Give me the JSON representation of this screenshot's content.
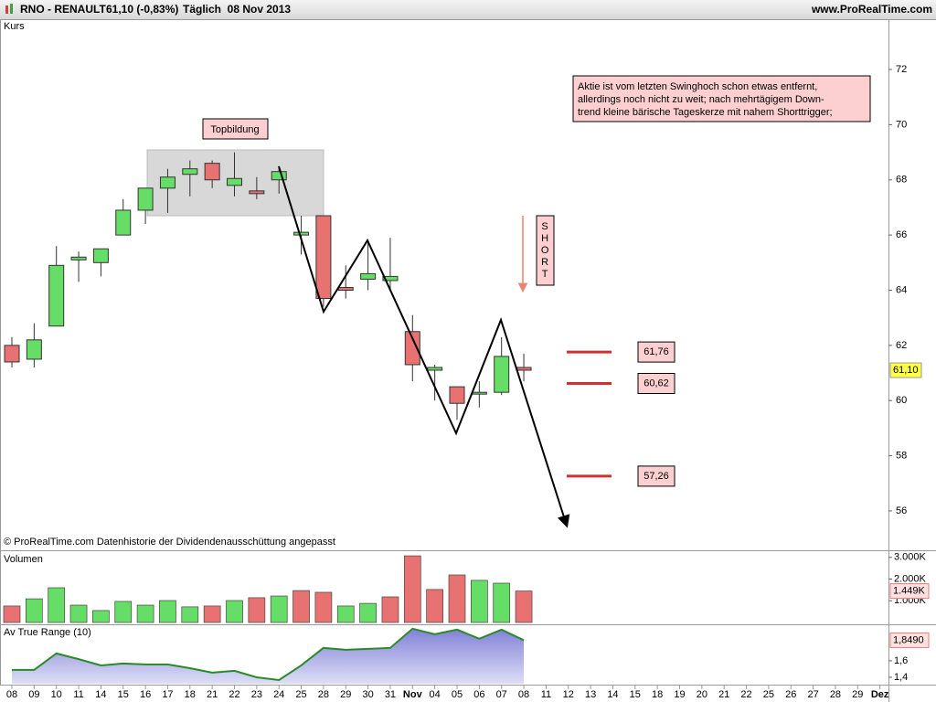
{
  "header": {
    "symbol": "RNO - RENAULT",
    "quote": "61,10 (-0,83%)",
    "period": "Täglich  08 Nov 2013",
    "site": "www.ProRealTime.com"
  },
  "x_axis": {
    "labels": [
      "08",
      "09",
      "10",
      "11",
      "14",
      "15",
      "16",
      "17",
      "18",
      "21",
      "22",
      "23",
      "24",
      "25",
      "28",
      "29",
      "30",
      "31",
      "Nov",
      "04",
      "05",
      "06",
      "07",
      "08",
      "11",
      "12",
      "13",
      "14",
      "15",
      "18",
      "19",
      "20",
      "21",
      "22",
      "25",
      "26",
      "27",
      "28",
      "29",
      "Dez"
    ]
  },
  "chart_data": [
    {
      "type": "candlestick",
      "title": "Kurs",
      "open": [
        62.0,
        61.5,
        62.7,
        65.1,
        65.0,
        66.0,
        66.9,
        67.7,
        68.2,
        68.6,
        67.8,
        67.6,
        68.0,
        66.0,
        66.7,
        64.1,
        64.4,
        64.35,
        62.5,
        61.1,
        60.5,
        60.25,
        60.3,
        61.2
      ],
      "high": [
        62.3,
        62.8,
        65.6,
        65.4,
        65.5,
        67.3,
        67.7,
        68.4,
        68.7,
        68.7,
        69.0,
        68.1,
        68.5,
        66.7,
        66.7,
        64.9,
        65.8,
        65.9,
        63.1,
        61.3,
        60.5,
        60.7,
        62.3,
        61.7
      ],
      "low": [
        61.2,
        61.2,
        62.7,
        64.3,
        64.5,
        66.0,
        66.4,
        66.8,
        67.4,
        67.7,
        67.4,
        67.3,
        67.5,
        65.3,
        63.4,
        63.7,
        64.0,
        64.0,
        60.7,
        60.0,
        59.3,
        59.75,
        60.2,
        60.7
      ],
      "close": [
        61.4,
        62.2,
        64.9,
        65.2,
        65.5,
        66.9,
        67.7,
        68.1,
        68.4,
        68.0,
        68.05,
        67.5,
        68.3,
        66.1,
        63.7,
        64.0,
        64.6,
        64.5,
        61.3,
        61.2,
        59.9,
        60.3,
        61.6,
        61.1
      ],
      "up_color": "#66dd66",
      "down_color": "#e87272",
      "ylim": [
        54.64,
        73.79
      ],
      "yticks": [
        56,
        58,
        60,
        62,
        64,
        66,
        68,
        70,
        72
      ],
      "last_value": {
        "value": 61.1,
        "label": "61,10"
      },
      "levels": [
        {
          "value": 61.76,
          "label": "61,76"
        },
        {
          "value": 60.62,
          "label": "60,62"
        },
        {
          "value": 57.26,
          "label": "57,26"
        }
      ],
      "level_color": "#d03030",
      "annotations": {
        "top": "Topbildung",
        "signal": "SHORT",
        "note": [
          "Aktie ist vom letzten Swinghoch schon etwas entfernt,",
          "allerdings noch nicht zu weit; nach mehrtägigem Down-",
          "trend kleine bärische Tageskerze mit nahem Shorttrigger;"
        ]
      },
      "footnote": "© ProRealTime.com  Datenhistorie der Dividendenausschüttung angepasst"
    },
    {
      "type": "bar",
      "title": "Volumen",
      "values": [
        760,
        1090,
        1600,
        800,
        550,
        970,
        800,
        1010,
        720,
        760,
        1010,
        1140,
        1220,
        1470,
        1390,
        760,
        880,
        1180,
        3070,
        1520,
        2190,
        1940,
        1810,
        1449
      ],
      "colors": [
        "#e87272",
        "#66dd66",
        "#66dd66",
        "#66dd66",
        "#66dd66",
        "#66dd66",
        "#66dd66",
        "#66dd66",
        "#66dd66",
        "#e87272",
        "#66dd66",
        "#e87272",
        "#66dd66",
        "#e87272",
        "#e87272",
        "#66dd66",
        "#66dd66",
        "#e87272",
        "#e87272",
        "#e87272",
        "#e87272",
        "#66dd66",
        "#66dd66",
        "#e87272"
      ],
      "ylim": [
        0,
        3200
      ],
      "yticks": [
        {
          "value": 1000,
          "label": "1.000K"
        },
        {
          "value": 2000,
          "label": "2.000K"
        },
        {
          "value": 3000,
          "label": "3.000K"
        }
      ],
      "last_value": {
        "value": 1449,
        "label": "1.449K"
      }
    },
    {
      "type": "area",
      "title": "Av True Range (10)",
      "values": [
        1.489,
        1.489,
        1.689,
        1.62,
        1.544,
        1.567,
        1.556,
        1.556,
        1.51,
        1.456,
        1.478,
        1.4,
        1.367,
        1.544,
        1.756,
        1.733,
        1.744,
        1.756,
        1.989,
        1.922,
        1.978,
        1.867,
        1.978,
        1.849
      ],
      "color": "#8888dd",
      "line_color": "#2a8a2a",
      "ylim": [
        1.322,
        2.02
      ],
      "yticks": [
        {
          "value": 1.4,
          "label": "1,4"
        },
        {
          "value": 1.6,
          "label": "1,6"
        }
      ],
      "last_value": {
        "value": 1.849,
        "label": "1,8490"
      }
    }
  ]
}
